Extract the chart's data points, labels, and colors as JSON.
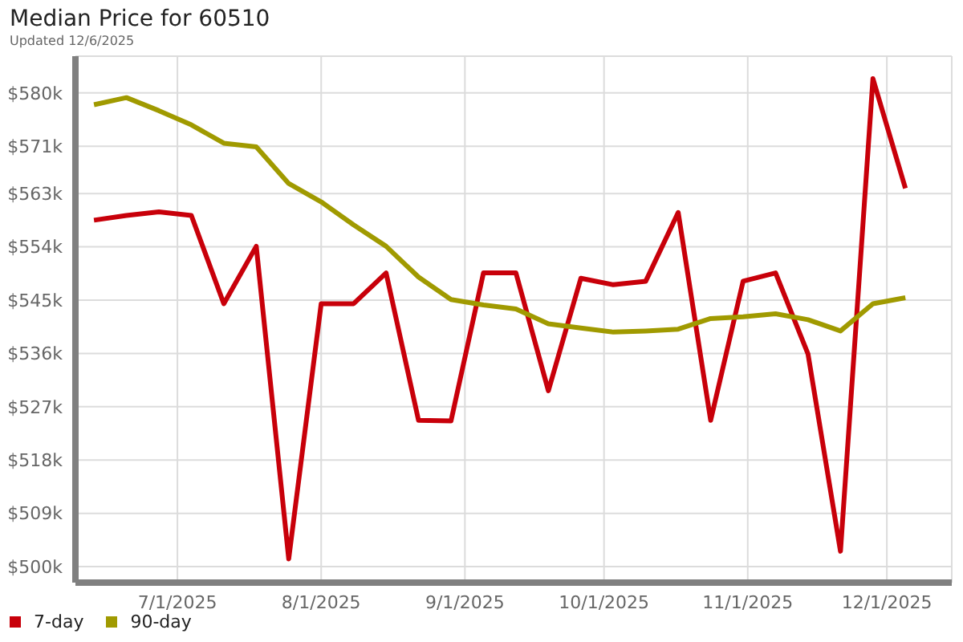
{
  "chart_data": {
    "type": "line",
    "title": "Median Price for 60510",
    "subtitle": "Updated 12/6/2025",
    "x": [
      "2025-06-13",
      "2025-06-20",
      "2025-06-27",
      "2025-07-04",
      "2025-07-11",
      "2025-07-18",
      "2025-07-25",
      "2025-08-01",
      "2025-08-08",
      "2025-08-15",
      "2025-08-22",
      "2025-08-29",
      "2025-09-05",
      "2025-09-12",
      "2025-09-19",
      "2025-09-26",
      "2025-10-03",
      "2025-10-10",
      "2025-10-17",
      "2025-10-24",
      "2025-10-31",
      "2025-11-07",
      "2025-11-14",
      "2025-11-21",
      "2025-11-28",
      "2025-12-05"
    ],
    "series": [
      {
        "name": "7-day",
        "color": "#c8000a",
        "values": [
          558.5,
          559.3,
          559.9,
          559.3,
          544.4,
          554.1,
          501.3,
          544.4,
          544.4,
          549.6,
          524.7,
          524.6,
          549.6,
          549.6,
          529.7,
          548.7,
          547.6,
          548.2,
          559.8,
          524.7,
          548.2,
          549.6,
          535.9,
          502.6,
          582.4,
          563.9
        ]
      },
      {
        "name": "90-day",
        "color": "#a09a00",
        "values": [
          578.0,
          579.2,
          577.0,
          574.6,
          571.5,
          570.9,
          564.7,
          561.6,
          557.7,
          554.1,
          548.9,
          545.1,
          544.2,
          543.5,
          541.0,
          540.3,
          539.6,
          539.8,
          540.1,
          541.9,
          542.2,
          542.7,
          541.7,
          539.8,
          544.4,
          545.4
        ]
      }
    ],
    "xlim": [
      "2025-06-09",
      "2025-12-15"
    ],
    "xticks": [
      {
        "value": "2025-07-01",
        "label": "7/1/2025"
      },
      {
        "value": "2025-08-01",
        "label": "8/1/2025"
      },
      {
        "value": "2025-09-01",
        "label": "9/1/2025"
      },
      {
        "value": "2025-10-01",
        "label": "10/1/2025"
      },
      {
        "value": "2025-11-01",
        "label": "11/1/2025"
      },
      {
        "value": "2025-12-01",
        "label": "12/1/2025"
      }
    ],
    "ylim": [
      497.3,
      586.2
    ],
    "yticks": [
      {
        "value": 500,
        "label": "$500k"
      },
      {
        "value": 509,
        "label": "$509k"
      },
      {
        "value": 518,
        "label": "$518k"
      },
      {
        "value": 527,
        "label": "$527k"
      },
      {
        "value": 536,
        "label": "$536k"
      },
      {
        "value": 545,
        "label": "$545k"
      },
      {
        "value": 554,
        "label": "$554k"
      },
      {
        "value": 563,
        "label": "$563k"
      },
      {
        "value": 571,
        "label": "$571k"
      },
      {
        "value": 580,
        "label": "$580k"
      }
    ],
    "grid": true,
    "legend": "bottom left",
    "marker": "none",
    "line_style": "solid"
  }
}
